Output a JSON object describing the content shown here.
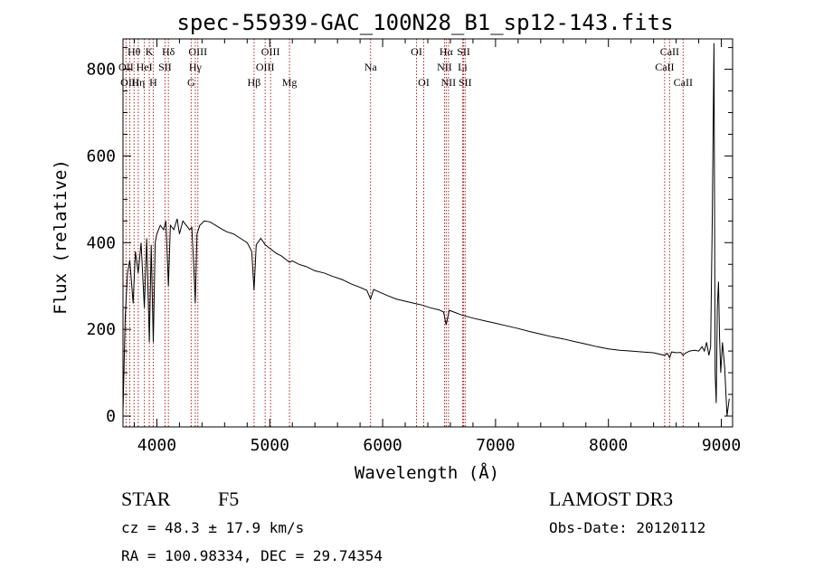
{
  "chart_data": {
    "type": "line",
    "title": "spec-55939-GAC_100N28_B1_sp12-143.fits",
    "xlabel": "Wavelength (Å)",
    "ylabel": "Flux (relative)",
    "xlim": [
      3700,
      9100
    ],
    "ylim": [
      -25,
      870
    ],
    "xticks": [
      4000,
      5000,
      6000,
      7000,
      8000,
      9000
    ],
    "yticks": [
      0,
      200,
      400,
      600,
      800
    ],
    "grid": false,
    "legend": "none",
    "line_color": "#000000",
    "marker_color": "#b22222",
    "spectrum": {
      "wavelength": [
        3700,
        3720,
        3740,
        3760,
        3790,
        3810,
        3835,
        3860,
        3889,
        3910,
        3933,
        3950,
        3968,
        3985,
        4000,
        4030,
        4060,
        4080,
        4102,
        4120,
        4150,
        4180,
        4200,
        4230,
        4260,
        4290,
        4310,
        4330,
        4340,
        4355,
        4380,
        4420,
        4470,
        4520,
        4570,
        4620,
        4680,
        4740,
        4800,
        4840,
        4861,
        4880,
        4920,
        4960,
        5010,
        5060,
        5100,
        5150,
        5175,
        5200,
        5260,
        5320,
        5400,
        5480,
        5560,
        5640,
        5720,
        5800,
        5860,
        5893,
        5920,
        5980,
        6050,
        6120,
        6200,
        6280,
        6350,
        6420,
        6500,
        6540,
        6563,
        6590,
        6650,
        6700,
        6800,
        6900,
        7000,
        7100,
        7200,
        7300,
        7400,
        7500,
        7600,
        7700,
        7800,
        7900,
        8000,
        8100,
        8200,
        8300,
        8400,
        8498,
        8520,
        8542,
        8560,
        8600,
        8640,
        8662,
        8680,
        8720,
        8760,
        8800,
        8830,
        8850,
        8870,
        8890,
        8905,
        8920,
        8935,
        8945,
        8955,
        8965,
        8975,
        8985,
        8995,
        9010,
        9030,
        9050,
        9070
      ],
      "flux": [
        10,
        230,
        330,
        360,
        260,
        380,
        330,
        400,
        250,
        410,
        170,
        395,
        170,
        400,
        420,
        440,
        430,
        450,
        300,
        440,
        430,
        455,
        420,
        450,
        440,
        430,
        435,
        330,
        260,
        420,
        440,
        450,
        448,
        440,
        432,
        425,
        420,
        410,
        400,
        380,
        290,
        395,
        410,
        395,
        385,
        375,
        370,
        360,
        355,
        358,
        350,
        345,
        335,
        330,
        322,
        315,
        305,
        297,
        290,
        270,
        292,
        285,
        277,
        270,
        265,
        260,
        256,
        250,
        245,
        240,
        210,
        244,
        238,
        233,
        226,
        220,
        214,
        208,
        202,
        195,
        189,
        183,
        178,
        172,
        166,
        160,
        155,
        152,
        150,
        148,
        146,
        140,
        145,
        135,
        148,
        146,
        147,
        140,
        145,
        150,
        152,
        150,
        160,
        150,
        170,
        140,
        160,
        450,
        860,
        100,
        30,
        250,
        310,
        180,
        100,
        170,
        110,
        0,
        40
      ]
    },
    "lines": [
      {
        "label": "Hθ",
        "x": 3798,
        "row": 1
      },
      {
        "label": "OII",
        "x": 3727,
        "row": 2
      },
      {
        "label": "OIII",
        "x": 3760,
        "row": 3
      },
      {
        "label": "Hη",
        "x": 3835,
        "row": 3
      },
      {
        "label": "HeI",
        "x": 3889,
        "row": 2
      },
      {
        "label": "K",
        "x": 3933,
        "row": 1
      },
      {
        "label": "H",
        "x": 3968,
        "row": 3
      },
      {
        "label": "SII",
        "x": 4072,
        "row": 2
      },
      {
        "label": "Hδ",
        "x": 4102,
        "row": 1
      },
      {
        "label": "G",
        "x": 4304,
        "row": 3
      },
      {
        "label": "Hγ",
        "x": 4340,
        "row": 2
      },
      {
        "label": "OIII",
        "x": 4363,
        "row": 1
      },
      {
        "label": "Hβ",
        "x": 4861,
        "row": 3
      },
      {
        "label": "OIII",
        "x": 4959,
        "row": 2
      },
      {
        "label": "OIII",
        "x": 5007,
        "row": 1
      },
      {
        "label": "Mg",
        "x": 5175,
        "row": 3
      },
      {
        "label": "Na",
        "x": 5893,
        "row": 2
      },
      {
        "label": "OI",
        "x": 6300,
        "row": 1
      },
      {
        "label": "OI",
        "x": 6364,
        "row": 3
      },
      {
        "label": "NII",
        "x": 6548,
        "row": 2
      },
      {
        "label": "Hα",
        "x": 6563,
        "row": 1
      },
      {
        "label": "NII",
        "x": 6583,
        "row": 3
      },
      {
        "label": "Li",
        "x": 6708,
        "row": 2
      },
      {
        "label": "SII",
        "x": 6717,
        "row": 1
      },
      {
        "label": "SII",
        "x": 6731,
        "row": 3
      },
      {
        "label": "CaII",
        "x": 8498,
        "row": 2
      },
      {
        "label": "CaII",
        "x": 8542,
        "row": 1
      },
      {
        "label": "CaII",
        "x": 8662,
        "row": 3
      }
    ]
  },
  "info": {
    "object_class": "STAR",
    "subclass": "F5",
    "survey": "LAMOST DR3",
    "redshift": "cz = 48.3 ± 17.9 km/s",
    "obs_date": "Obs-Date: 20120112",
    "coords": "RA = 100.98334, DEC =  29.74354"
  }
}
